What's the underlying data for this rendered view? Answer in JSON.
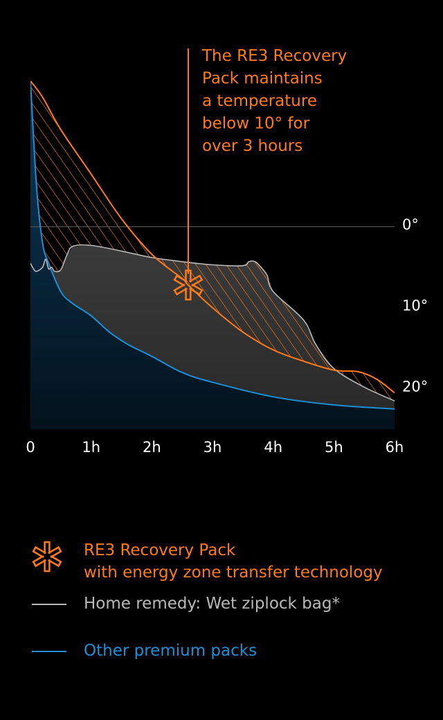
{
  "colors": {
    "re3": "#ff7a1a",
    "home": "#b9b9b9",
    "other": "#1d8fd6",
    "grid": "#5a5a5a",
    "text": "#ffffff"
  },
  "chart_data": {
    "type": "area",
    "title": "",
    "xlabel": "",
    "ylabel": "",
    "x_unit": "hours",
    "y_unit": "degrees",
    "xlim": [
      0,
      6
    ],
    "ylim": [
      -18,
      25
    ],
    "y_axis_position": "right",
    "y_inverted": true,
    "x_ticks": [
      0,
      1,
      2,
      3,
      4,
      5,
      6
    ],
    "x_tick_labels": [
      "0",
      "1h",
      "2h",
      "3h",
      "4h",
      "5h",
      "6h"
    ],
    "y_ticks": [
      0,
      10,
      20
    ],
    "y_tick_labels": [
      "0°",
      "10°",
      "20°"
    ],
    "reference_line": 0,
    "series": [
      {
        "key": "re3",
        "x": [
          0,
          0.2,
          0.5,
          1.0,
          1.5,
          2.0,
          2.5,
          2.6,
          3.0,
          3.5,
          4.0,
          4.5,
          5.0,
          5.4,
          5.7,
          6.0
        ],
        "y": [
          -18,
          -16,
          -12,
          -6.5,
          -1,
          3.4,
          6.4,
          7.2,
          10,
          13,
          15.2,
          16.6,
          17.7,
          17.9,
          18.8,
          20.5
        ]
      },
      {
        "key": "home",
        "x": [
          0,
          0.05,
          0.1,
          0.2,
          0.25,
          0.3,
          0.35,
          0.4,
          0.5,
          0.6,
          0.7,
          1.0,
          1.5,
          2.0,
          2.5,
          3.0,
          3.5,
          3.6,
          3.7,
          3.8,
          3.9,
          4.0,
          4.5,
          4.7,
          5.0,
          5.5,
          6.0
        ],
        "y": [
          4.5,
          5.2,
          5.5,
          5.0,
          4.0,
          5.2,
          5.0,
          5.5,
          5.3,
          3.5,
          2.4,
          2.3,
          3.0,
          3.8,
          4.3,
          4.7,
          4.8,
          4.3,
          4.3,
          5.0,
          6.0,
          8.0,
          11.5,
          14.5,
          17.5,
          19.8,
          21.5
        ]
      },
      {
        "key": "other",
        "x": [
          0,
          0.1,
          0.2,
          0.3,
          0.5,
          0.7,
          1.0,
          1.3,
          1.6,
          2.0,
          2.5,
          3.0,
          4.0,
          5.0,
          6.0
        ],
        "y": [
          -18,
          -5,
          2,
          4.5,
          8,
          9.5,
          11,
          13,
          14.5,
          16,
          18,
          19.2,
          21,
          22,
          22.5
        ]
      }
    ],
    "annotation": {
      "x": 2.6,
      "y": 7.2,
      "lines": [
        "The RE3 Recovery",
        "Pack maintains",
        "a temperature",
        "below 10° for",
        "over 3 hours"
      ]
    }
  },
  "legend": [
    {
      "key": "re3",
      "line1": "RE3 Recovery Pack",
      "line2": "with energy zone transfer technology",
      "marker": "asterisk-icon"
    },
    {
      "key": "home",
      "label": "Home remedy: Wet ziplock bag*",
      "marker": "line-swatch"
    },
    {
      "key": "other",
      "label": "Other premium packs",
      "marker": "line-swatch"
    }
  ]
}
